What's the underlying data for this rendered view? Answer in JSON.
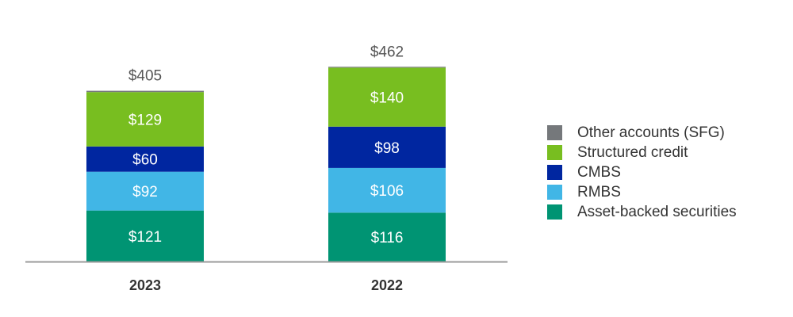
{
  "chart_data": {
    "type": "bar",
    "stacked": true,
    "categories": [
      "2023",
      "2022"
    ],
    "totals": [
      "$405",
      "$462"
    ],
    "total_values": [
      405,
      462
    ],
    "series": [
      {
        "name": "Asset-backed securities",
        "color": "#009473",
        "values": [
          121,
          116
        ],
        "labels": [
          "$121",
          "$116"
        ]
      },
      {
        "name": "RMBS",
        "color": "#41b6e6",
        "values": [
          92,
          106
        ],
        "labels": [
          "$92",
          "$106"
        ]
      },
      {
        "name": "CMBS",
        "color": "#0026a0",
        "values": [
          60,
          98
        ],
        "labels": [
          "$60",
          "$98"
        ]
      },
      {
        "name": "Structured credit",
        "color": "#78be20",
        "values": [
          129,
          140
        ],
        "labels": [
          "$129",
          "$140"
        ]
      },
      {
        "name": "Other accounts (SFG)",
        "color": "#75787b",
        "values": [
          3,
          2
        ],
        "labels": [
          "",
          ""
        ]
      }
    ],
    "legend_order": [
      "Other accounts (SFG)",
      "Structured credit",
      "CMBS",
      "RMBS",
      "Asset-backed securities"
    ],
    "legend_position": "right",
    "ylim": [
      0,
      470
    ],
    "grid": false
  }
}
